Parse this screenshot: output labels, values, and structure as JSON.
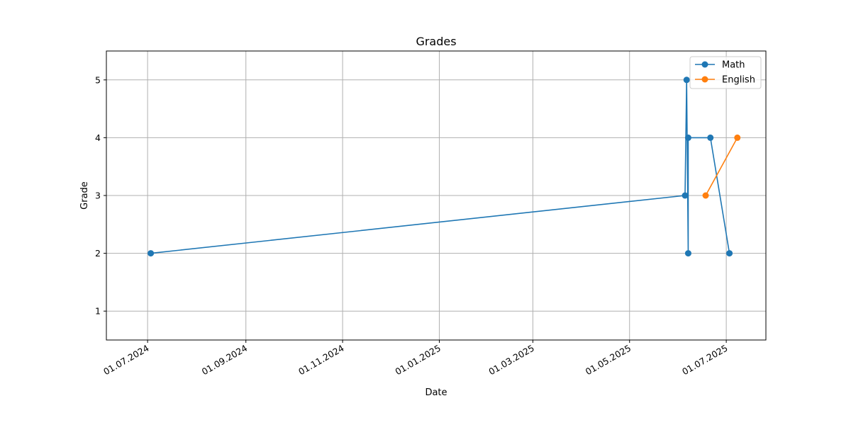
{
  "chart_data": {
    "type": "line",
    "title": "Grades",
    "xlabel": "Date",
    "ylabel": "Grade",
    "xlim": [
      "2024-06-05",
      "2025-07-26"
    ],
    "ylim": [
      0.5,
      5.5
    ],
    "x_ticks": [
      "2024-07-01",
      "2024-09-01",
      "2024-11-01",
      "2025-01-01",
      "2025-03-01",
      "2025-05-01",
      "2025-07-01"
    ],
    "x_tick_labels": [
      "01.07.2024",
      "01.09.2024",
      "01.11.2024",
      "01.01.2025",
      "01.03.2025",
      "01.05.2025",
      "01.07.2025"
    ],
    "y_ticks": [
      1,
      2,
      3,
      4,
      5
    ],
    "y_tick_labels": [
      "1",
      "2",
      "3",
      "4",
      "5"
    ],
    "grid": true,
    "legend_position": "top-right",
    "series": [
      {
        "name": "Math",
        "color": "#1f77b4",
        "points": [
          {
            "x": "2024-07-03",
            "y": 2
          },
          {
            "x": "2025-06-05",
            "y": 3
          },
          {
            "x": "2025-06-06",
            "y": 5
          },
          {
            "x": "2025-06-07",
            "y": 2
          },
          {
            "x": "2025-06-07",
            "y": 4
          },
          {
            "x": "2025-06-21",
            "y": 4
          },
          {
            "x": "2025-07-03",
            "y": 2
          }
        ]
      },
      {
        "name": "English",
        "color": "#ff7f0e",
        "points": [
          {
            "x": "2025-06-18",
            "y": 3
          },
          {
            "x": "2025-07-08",
            "y": 4
          }
        ]
      }
    ]
  }
}
